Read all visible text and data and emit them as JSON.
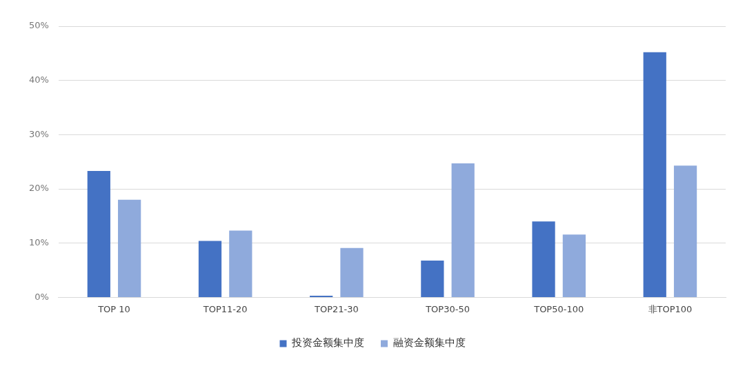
{
  "chart_data": {
    "type": "bar",
    "categories": [
      "TOP 10",
      "TOP11-20",
      "TOP21-30",
      "TOP30-50",
      "TOP50-100",
      "非TOP100"
    ],
    "series": [
      {
        "name": "投资金额集中度",
        "color": "#4472c4",
        "values": [
          23.3,
          10.4,
          0.3,
          6.8,
          14.0,
          45.2
        ]
      },
      {
        "name": "融资金额集中度",
        "color": "#8faadc",
        "values": [
          18.0,
          12.3,
          9.1,
          24.7,
          11.6,
          24.3
        ]
      }
    ],
    "ylim": [
      0,
      50
    ],
    "yticks": [
      {
        "value": 0,
        "label": "0%"
      },
      {
        "value": 10,
        "label": "10%"
      },
      {
        "value": 20,
        "label": "20%"
      },
      {
        "value": 30,
        "label": "30%"
      },
      {
        "value": 40,
        "label": "40%"
      },
      {
        "value": 50,
        "label": "50%"
      }
    ],
    "grid": "y",
    "legend": "bottom"
  }
}
